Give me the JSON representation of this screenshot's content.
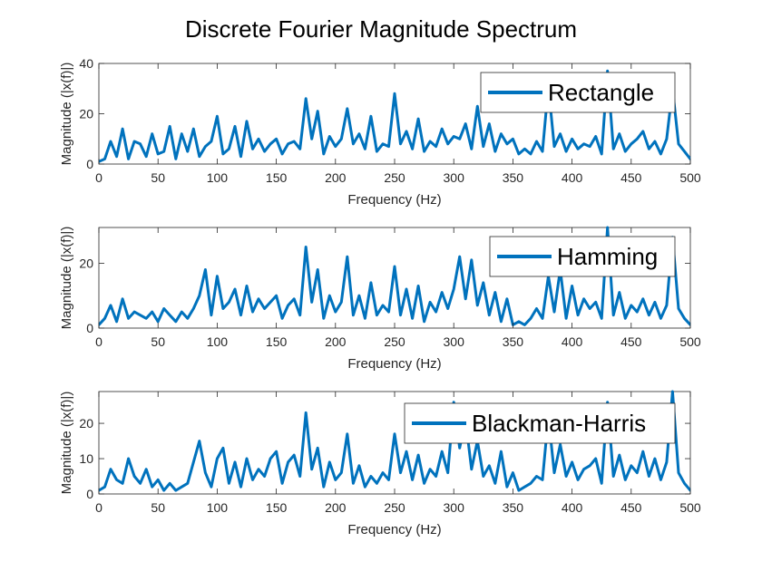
{
  "figure": {
    "title": "Discrete Fourier Magnitude Spectrum"
  },
  "colors": {
    "line": "#0072BD",
    "axis": "#262626",
    "background": "#ffffff"
  },
  "chart_data": [
    {
      "type": "line",
      "xlabel": "Frequency (Hz)",
      "ylabel": "Magnitude (|x(f)|)",
      "xlim": [
        0,
        500
      ],
      "ylim": [
        0,
        40
      ],
      "xticks": [
        0,
        50,
        100,
        150,
        200,
        250,
        300,
        350,
        400,
        450,
        500
      ],
      "yticks": [
        0,
        20,
        40
      ],
      "legend_position": "top-right",
      "grid": false,
      "series": [
        {
          "name": "Rectangle",
          "x": [
            0,
            5,
            10,
            15,
            20,
            25,
            30,
            35,
            40,
            45,
            50,
            55,
            60,
            65,
            70,
            75,
            80,
            85,
            90,
            95,
            100,
            105,
            110,
            115,
            120,
            125,
            130,
            135,
            140,
            145,
            150,
            155,
            160,
            165,
            170,
            175,
            180,
            185,
            190,
            195,
            200,
            205,
            210,
            215,
            220,
            225,
            230,
            235,
            240,
            245,
            250,
            255,
            260,
            265,
            270,
            275,
            280,
            285,
            290,
            295,
            300,
            305,
            310,
            315,
            320,
            325,
            330,
            335,
            340,
            345,
            350,
            355,
            360,
            365,
            370,
            375,
            380,
            385,
            390,
            395,
            400,
            405,
            410,
            415,
            420,
            425,
            430,
            435,
            440,
            445,
            450,
            455,
            460,
            465,
            470,
            475,
            480,
            485,
            490,
            495,
            500
          ],
          "values": [
            1,
            2,
            9,
            3,
            14,
            2,
            9,
            8,
            3,
            12,
            4,
            5,
            15,
            2,
            12,
            5,
            14,
            3,
            7,
            9,
            19,
            4,
            6,
            15,
            3,
            17,
            6,
            10,
            5,
            8,
            10,
            4,
            8,
            9,
            6,
            26,
            10,
            21,
            4,
            11,
            7,
            10,
            22,
            8,
            12,
            6,
            19,
            5,
            8,
            7,
            28,
            8,
            13,
            6,
            18,
            5,
            9,
            7,
            14,
            8,
            11,
            10,
            16,
            6,
            23,
            7,
            16,
            5,
            12,
            8,
            10,
            4,
            6,
            4,
            9,
            5,
            31,
            7,
            12,
            5,
            10,
            6,
            8,
            7,
            11,
            4,
            37,
            6,
            12,
            5,
            8,
            10,
            13,
            6,
            9,
            4,
            10,
            30,
            8,
            5,
            2
          ]
        }
      ]
    },
    {
      "type": "line",
      "xlabel": "Frequency (Hz)",
      "ylabel": "Magnitude (|x(f)|)",
      "xlim": [
        0,
        500
      ],
      "ylim": [
        0,
        31
      ],
      "xticks": [
        0,
        50,
        100,
        150,
        200,
        250,
        300,
        350,
        400,
        450,
        500
      ],
      "yticks": [
        0,
        20
      ],
      "legend_position": "top-right",
      "grid": false,
      "series": [
        {
          "name": "Hamming",
          "x": [
            0,
            5,
            10,
            15,
            20,
            25,
            30,
            35,
            40,
            45,
            50,
            55,
            60,
            65,
            70,
            75,
            80,
            85,
            90,
            95,
            100,
            105,
            110,
            115,
            120,
            125,
            130,
            135,
            140,
            145,
            150,
            155,
            160,
            165,
            170,
            175,
            180,
            185,
            190,
            195,
            200,
            205,
            210,
            215,
            220,
            225,
            230,
            235,
            240,
            245,
            250,
            255,
            260,
            265,
            270,
            275,
            280,
            285,
            290,
            295,
            300,
            305,
            310,
            315,
            320,
            325,
            330,
            335,
            340,
            345,
            350,
            355,
            360,
            365,
            370,
            375,
            380,
            385,
            390,
            395,
            400,
            405,
            410,
            415,
            420,
            425,
            430,
            435,
            440,
            445,
            450,
            455,
            460,
            465,
            470,
            475,
            480,
            485,
            490,
            495,
            500
          ],
          "values": [
            1,
            3,
            7,
            2,
            9,
            3,
            5,
            4,
            3,
            5,
            2,
            6,
            4,
            2,
            5,
            3,
            6,
            10,
            18,
            4,
            16,
            6,
            8,
            12,
            4,
            13,
            5,
            9,
            6,
            8,
            10,
            3,
            7,
            9,
            4,
            25,
            8,
            18,
            3,
            10,
            5,
            8,
            22,
            4,
            10,
            3,
            14,
            4,
            7,
            5,
            19,
            4,
            12,
            3,
            13,
            2,
            8,
            5,
            11,
            6,
            12,
            22,
            9,
            21,
            7,
            14,
            4,
            11,
            2,
            9,
            1,
            2,
            1,
            3,
            6,
            3,
            16,
            5,
            18,
            3,
            13,
            4,
            9,
            6,
            8,
            3,
            31,
            4,
            11,
            3,
            7,
            5,
            9,
            4,
            8,
            3,
            7,
            28,
            6,
            3,
            1
          ]
        }
      ]
    },
    {
      "type": "line",
      "xlabel": "Frequency (Hz)",
      "ylabel": "Magnitude (|x(f)|)",
      "xlim": [
        0,
        500
      ],
      "ylim": [
        0,
        29
      ],
      "xticks": [
        0,
        50,
        100,
        150,
        200,
        250,
        300,
        350,
        400,
        450,
        500
      ],
      "yticks": [
        0,
        10,
        20
      ],
      "legend_position": "top-right",
      "grid": false,
      "series": [
        {
          "name": "Blackman-Harris",
          "x": [
            0,
            5,
            10,
            15,
            20,
            25,
            30,
            35,
            40,
            45,
            50,
            55,
            60,
            65,
            70,
            75,
            80,
            85,
            90,
            95,
            100,
            105,
            110,
            115,
            120,
            125,
            130,
            135,
            140,
            145,
            150,
            155,
            160,
            165,
            170,
            175,
            180,
            185,
            190,
            195,
            200,
            205,
            210,
            215,
            220,
            225,
            230,
            235,
            240,
            245,
            250,
            255,
            260,
            265,
            270,
            275,
            280,
            285,
            290,
            295,
            300,
            305,
            310,
            315,
            320,
            325,
            330,
            335,
            340,
            345,
            350,
            355,
            360,
            365,
            370,
            375,
            380,
            385,
            390,
            395,
            400,
            405,
            410,
            415,
            420,
            425,
            430,
            435,
            440,
            445,
            450,
            455,
            460,
            465,
            470,
            475,
            480,
            485,
            490,
            495,
            500
          ],
          "values": [
            1,
            2,
            7,
            4,
            3,
            10,
            5,
            3,
            7,
            2,
            4,
            1,
            3,
            1,
            2,
            3,
            9,
            15,
            6,
            2,
            10,
            13,
            3,
            9,
            2,
            10,
            4,
            7,
            5,
            10,
            12,
            3,
            9,
            11,
            5,
            23,
            7,
            13,
            2,
            9,
            4,
            6,
            17,
            3,
            8,
            2,
            5,
            3,
            6,
            4,
            17,
            6,
            12,
            4,
            11,
            3,
            7,
            5,
            12,
            6,
            26,
            13,
            21,
            7,
            15,
            5,
            8,
            3,
            12,
            2,
            6,
            1,
            2,
            3,
            5,
            4,
            22,
            6,
            14,
            5,
            9,
            4,
            7,
            8,
            10,
            3,
            26,
            5,
            11,
            4,
            8,
            6,
            12,
            5,
            10,
            4,
            9,
            29,
            6,
            3,
            1
          ]
        }
      ]
    }
  ]
}
